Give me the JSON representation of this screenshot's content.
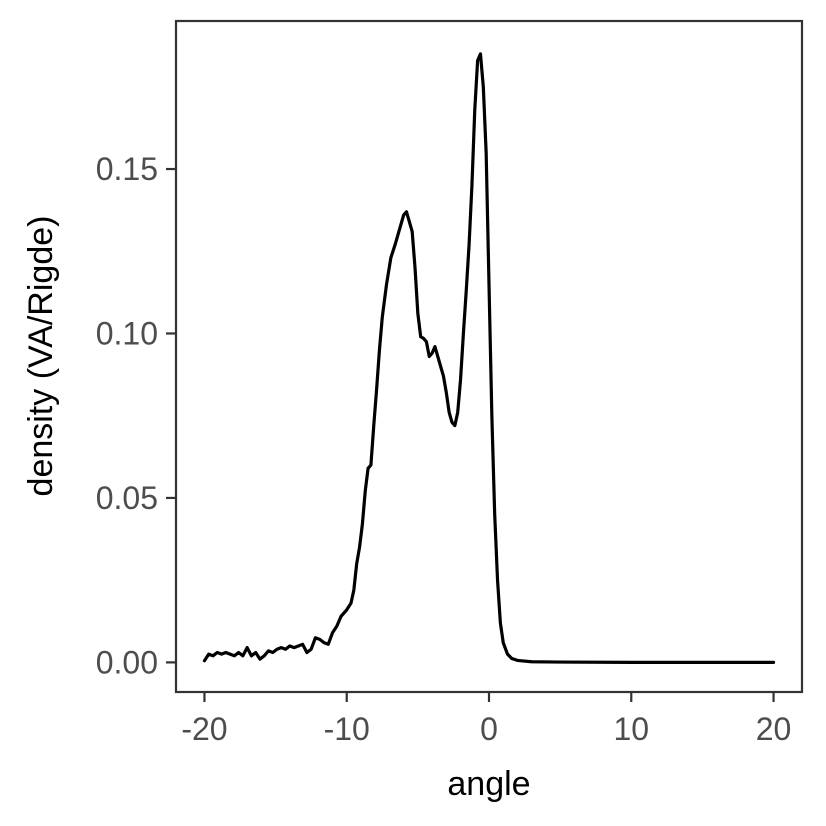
{
  "chart_data": {
    "type": "line",
    "title": "",
    "xlabel": "angle",
    "ylabel": "density (VA/Rigde)",
    "xlim": [
      -22,
      22
    ],
    "ylim": [
      -0.009,
      0.195
    ],
    "x_ticks": [
      -20,
      -10,
      0,
      10,
      20
    ],
    "x_tick_labels": [
      "-20",
      "-10",
      "0",
      "10",
      "20"
    ],
    "y_ticks": [
      0.0,
      0.05,
      0.1,
      0.15
    ],
    "y_tick_labels": [
      "0.00",
      "0.05",
      "0.10",
      "0.15"
    ],
    "grid": false,
    "legend": "none",
    "line_color": "#000000",
    "series": [
      {
        "points": [
          [
            -20.0,
            0.0005
          ],
          [
            -19.7,
            0.0025
          ],
          [
            -19.4,
            0.002
          ],
          [
            -19.1,
            0.003
          ],
          [
            -18.8,
            0.0025
          ],
          [
            -18.5,
            0.003
          ],
          [
            -18.2,
            0.0025
          ],
          [
            -17.9,
            0.002
          ],
          [
            -17.6,
            0.003
          ],
          [
            -17.3,
            0.002
          ],
          [
            -17.0,
            0.0045
          ],
          [
            -16.7,
            0.002
          ],
          [
            -16.4,
            0.003
          ],
          [
            -16.1,
            0.001
          ],
          [
            -15.8,
            0.002
          ],
          [
            -15.5,
            0.0035
          ],
          [
            -15.2,
            0.003
          ],
          [
            -14.9,
            0.004
          ],
          [
            -14.6,
            0.0045
          ],
          [
            -14.3,
            0.004
          ],
          [
            -14.0,
            0.005
          ],
          [
            -13.7,
            0.0045
          ],
          [
            -13.4,
            0.005
          ],
          [
            -13.1,
            0.0055
          ],
          [
            -12.8,
            0.003
          ],
          [
            -12.5,
            0.004
          ],
          [
            -12.2,
            0.0075
          ],
          [
            -11.9,
            0.007
          ],
          [
            -11.6,
            0.006
          ],
          [
            -11.3,
            0.0055
          ],
          [
            -11.0,
            0.009
          ],
          [
            -10.7,
            0.011
          ],
          [
            -10.4,
            0.014
          ],
          [
            -10.0,
            0.016
          ],
          [
            -9.7,
            0.018
          ],
          [
            -9.5,
            0.022
          ],
          [
            -9.3,
            0.03
          ],
          [
            -9.1,
            0.035
          ],
          [
            -8.9,
            0.042
          ],
          [
            -8.7,
            0.052
          ],
          [
            -8.5,
            0.059
          ],
          [
            -8.3,
            0.06
          ],
          [
            -8.1,
            0.072
          ],
          [
            -7.9,
            0.083
          ],
          [
            -7.7,
            0.095
          ],
          [
            -7.5,
            0.105
          ],
          [
            -7.2,
            0.115
          ],
          [
            -6.9,
            0.123
          ],
          [
            -6.6,
            0.127
          ],
          [
            -6.4,
            0.13
          ],
          [
            -6.2,
            0.133
          ],
          [
            -6.0,
            0.136
          ],
          [
            -5.8,
            0.137
          ],
          [
            -5.6,
            0.134
          ],
          [
            -5.4,
            0.131
          ],
          [
            -5.2,
            0.12
          ],
          [
            -5.0,
            0.106
          ],
          [
            -4.8,
            0.099
          ],
          [
            -4.6,
            0.0985
          ],
          [
            -4.4,
            0.0975
          ],
          [
            -4.2,
            0.093
          ],
          [
            -4.0,
            0.094
          ],
          [
            -3.8,
            0.096
          ],
          [
            -3.6,
            0.093
          ],
          [
            -3.4,
            0.09
          ],
          [
            -3.2,
            0.087
          ],
          [
            -3.0,
            0.082
          ],
          [
            -2.8,
            0.076
          ],
          [
            -2.6,
            0.073
          ],
          [
            -2.4,
            0.072
          ],
          [
            -2.2,
            0.076
          ],
          [
            -2.0,
            0.086
          ],
          [
            -1.8,
            0.1
          ],
          [
            -1.6,
            0.113
          ],
          [
            -1.4,
            0.127
          ],
          [
            -1.2,
            0.145
          ],
          [
            -1.0,
            0.168
          ],
          [
            -0.8,
            0.183
          ],
          [
            -0.6,
            0.185
          ],
          [
            -0.4,
            0.175
          ],
          [
            -0.2,
            0.155
          ],
          [
            0.0,
            0.115
          ],
          [
            0.2,
            0.075
          ],
          [
            0.4,
            0.045
          ],
          [
            0.6,
            0.025
          ],
          [
            0.8,
            0.012
          ],
          [
            1.0,
            0.006
          ],
          [
            1.3,
            0.0025
          ],
          [
            1.6,
            0.0012
          ],
          [
            2.0,
            0.0006
          ],
          [
            3.0,
            0.0002
          ],
          [
            5.0,
            0.0001
          ],
          [
            10.0,
            0.0
          ],
          [
            15.0,
            0.0
          ],
          [
            20.0,
            0.0
          ]
        ]
      }
    ]
  }
}
